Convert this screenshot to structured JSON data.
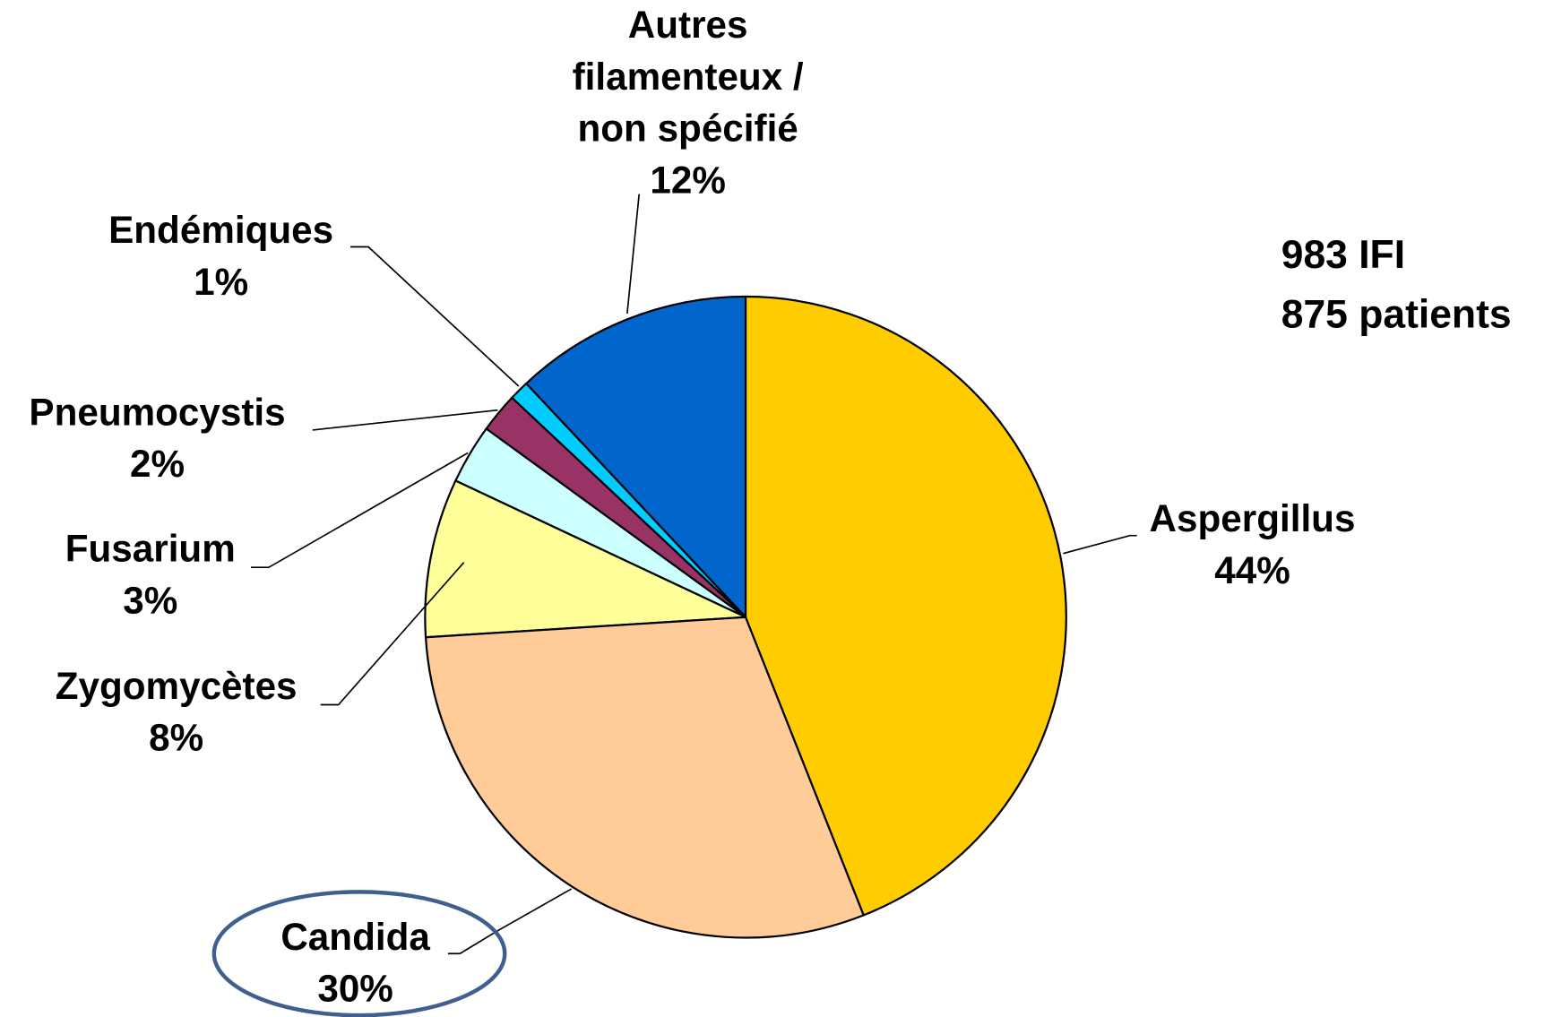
{
  "chart_data": {
    "type": "pie",
    "categories": [
      "Aspergillus",
      "Candida",
      "Zygomycètes",
      "Fusarium",
      "Pneumocystis",
      "Endémiques",
      "Autres filamenteux / non spécifié"
    ],
    "values": [
      44,
      30,
      8,
      3,
      2,
      1,
      12
    ],
    "value_labels": [
      "44%",
      "30%",
      "8%",
      "3%",
      "2%",
      "1%",
      "12%"
    ],
    "colors": [
      "#FFCC00",
      "#FFCC99",
      "#FFFF99",
      "#CCFFFF",
      "#993366",
      "#00CCFF",
      "#0066CC"
    ],
    "annotations": [
      "983 IFI",
      "875 patients"
    ]
  }
}
